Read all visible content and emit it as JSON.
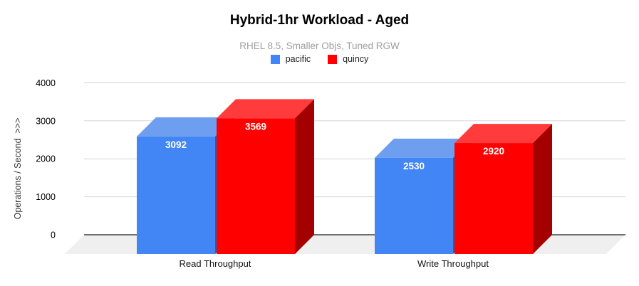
{
  "chart": {
    "title": "Hybrid-1hr Workload - Aged",
    "subtitle": "RHEL 8.5, Smaller Objs, Tuned RGW"
  },
  "chart_data": {
    "type": "bar",
    "style": "3d-column",
    "title": "Hybrid-1hr Workload - Aged",
    "subtitle": "RHEL 8.5, Smaller Objs, Tuned RGW",
    "categories": [
      "Read Throughput",
      "Write Throughput"
    ],
    "series": [
      {
        "name": "pacific",
        "values": [
          3092,
          2530
        ],
        "color": "#4285f4",
        "color_top": "#6d9eef",
        "color_side": "#2a5db0"
      },
      {
        "name": "quincy",
        "values": [
          3569,
          2920
        ],
        "color": "#ff0000",
        "color_top": "#ff3b3b",
        "color_side": "#a50000"
      }
    ],
    "xlabel": "",
    "ylabel": "Operations / Second  >>>",
    "ylim": [
      0,
      4000
    ],
    "yticks": [
      0,
      1000,
      2000,
      3000,
      4000
    ],
    "grid": true,
    "legend_position": "top",
    "data_labels_shown": true,
    "colors": {
      "data_label": "#ffffff",
      "floor": "#efefef",
      "gridline": "#d5d5d5",
      "zero_line": "#424242",
      "tick_label": "#000000",
      "category_label": "#111111"
    }
  }
}
